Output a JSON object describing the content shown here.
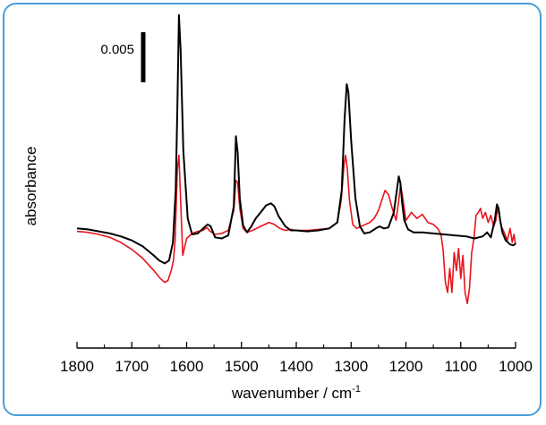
{
  "colors": {
    "frame": "#4a9fd6",
    "axis": "#000000",
    "series_black": "#000000",
    "series_red": "#e8141b"
  },
  "chart_data": {
    "type": "line",
    "xlabel": "wavenumber / cm",
    "xlabel_sup": "-1",
    "ylabel": "absorbance",
    "scale_bar_label": "0.005",
    "scale_bar_value": 0.005,
    "xlim": [
      1800,
      1000
    ],
    "x_reversed": true,
    "ylim": [
      -0.0088,
      0.0214
    ],
    "xticks": [
      "1800",
      "1700",
      "1600",
      "1500",
      "1400",
      "1300",
      "1200",
      "1100",
      "1000"
    ],
    "grid": false,
    "legend": "none",
    "series": [
      {
        "color": "#000000",
        "x": [
          1800,
          1780,
          1760,
          1740,
          1720,
          1700,
          1680,
          1660,
          1650,
          1640,
          1632,
          1625,
          1620,
          1617,
          1614,
          1611,
          1606,
          1598,
          1590,
          1580,
          1570,
          1562,
          1556,
          1548,
          1536,
          1524,
          1514,
          1510,
          1507,
          1503,
          1497,
          1490,
          1482,
          1474,
          1465,
          1455,
          1446,
          1440,
          1432,
          1420,
          1410,
          1400,
          1380,
          1360,
          1340,
          1325,
          1317,
          1312,
          1308,
          1305,
          1300,
          1292,
          1284,
          1276,
          1266,
          1255,
          1248,
          1240,
          1232,
          1222,
          1213,
          1210,
          1207,
          1203,
          1196,
          1186,
          1170,
          1150,
          1130,
          1110,
          1090,
          1075,
          1060,
          1052,
          1045,
          1038,
          1034,
          1031,
          1028,
          1024,
          1018,
          1010,
          1004,
          1000
        ],
        "y": [
          0.0002,
          0.0001,
          -0.0001,
          -0.0003,
          -0.0006,
          -0.001,
          -0.0016,
          -0.0025,
          -0.003,
          -0.0033,
          -0.003,
          -0.0012,
          0.004,
          0.012,
          0.0215,
          0.018,
          0.008,
          0.0012,
          -0.0004,
          -0.0003,
          0.0002,
          0.0006,
          0.0004,
          -0.0007,
          -0.0008,
          -0.0005,
          0.0024,
          0.0094,
          0.0078,
          0.0032,
          0.0005,
          -0.0002,
          0.0004,
          0.0012,
          0.0018,
          0.0025,
          0.0027,
          0.0024,
          0.0014,
          0.0004,
          0.0,
          0.0,
          -0.0001,
          0.0,
          0.0002,
          0.0008,
          0.004,
          0.011,
          0.0146,
          0.0138,
          0.009,
          0.0032,
          0.0004,
          -0.0003,
          -0.0002,
          0.0002,
          0.0004,
          0.0002,
          0.0003,
          0.0018,
          0.0054,
          0.0047,
          0.0028,
          0.001,
          0.0001,
          -0.0002,
          -0.0002,
          -0.0003,
          -0.0004,
          -0.0005,
          -0.0006,
          -0.0008,
          -0.0006,
          -0.0002,
          -0.0007,
          0.001,
          0.0026,
          0.0022,
          0.001,
          -0.0002,
          -0.001,
          -0.0014,
          -0.0015,
          -0.0013
        ]
      },
      {
        "color": "#e8141b",
        "x": [
          1800,
          1780,
          1760,
          1740,
          1720,
          1700,
          1680,
          1660,
          1648,
          1640,
          1634,
          1628,
          1624,
          1621,
          1617,
          1614,
          1611,
          1607,
          1600,
          1590,
          1580,
          1570,
          1563,
          1557,
          1548,
          1536,
          1524,
          1514,
          1510,
          1507,
          1503,
          1497,
          1490,
          1480,
          1465,
          1450,
          1440,
          1430,
          1420,
          1410,
          1400,
          1380,
          1360,
          1340,
          1325,
          1318,
          1313,
          1310,
          1307,
          1303,
          1297,
          1290,
          1282,
          1274,
          1266,
          1258,
          1250,
          1243,
          1238,
          1232,
          1225,
          1218,
          1213,
          1210,
          1206,
          1200,
          1190,
          1180,
          1170,
          1160,
          1150,
          1142,
          1136,
          1132,
          1128,
          1124,
          1120,
          1116,
          1112,
          1108,
          1104,
          1100,
          1096,
          1092,
          1088,
          1084,
          1080,
          1076,
          1072,
          1068,
          1064,
          1060,
          1055,
          1050,
          1045,
          1040,
          1036,
          1033,
          1030,
          1026,
          1020,
          1015,
          1010,
          1006,
          1003,
          1000
        ],
        "y": [
          -0.0001,
          -0.0002,
          -0.0004,
          -0.0007,
          -0.0012,
          -0.0019,
          -0.0028,
          -0.004,
          -0.0048,
          -0.0052,
          -0.005,
          -0.004,
          -0.003,
          -0.001,
          0.006,
          0.0075,
          0.003,
          -0.0025,
          -0.0008,
          -0.0003,
          -0.0001,
          0.0,
          0.0003,
          -0.0001,
          -0.0004,
          -0.0003,
          0.0,
          0.002,
          0.005,
          0.0048,
          0.0022,
          0.0002,
          -0.0002,
          0.0,
          0.0004,
          0.0008,
          0.0006,
          0.0002,
          0.0,
          0.0001,
          0.0,
          0.0,
          0.0001,
          0.0002,
          0.0008,
          0.003,
          0.0065,
          0.0075,
          0.0062,
          0.003,
          0.0006,
          0.0002,
          0.0004,
          0.0006,
          0.0008,
          0.0012,
          0.002,
          0.0032,
          0.004,
          0.0036,
          0.0022,
          0.001,
          0.003,
          0.0045,
          0.0034,
          0.001,
          0.0018,
          0.0012,
          0.0016,
          0.0008,
          0.0006,
          0.0002,
          -0.0004,
          -0.002,
          -0.0052,
          -0.0062,
          -0.0038,
          -0.0062,
          -0.0022,
          -0.004,
          -0.0018,
          -0.0048,
          -0.0025,
          -0.0062,
          -0.0073,
          -0.0058,
          -0.0022,
          -0.0008,
          0.0015,
          0.0018,
          0.0022,
          0.0012,
          0.0018,
          0.0008,
          0.0015,
          0.0004,
          0.001,
          0.0022,
          0.0016,
          0.0004,
          -0.0003,
          -0.001,
          0.0002,
          -0.0012,
          -0.0004,
          -0.0014
        ]
      }
    ]
  }
}
